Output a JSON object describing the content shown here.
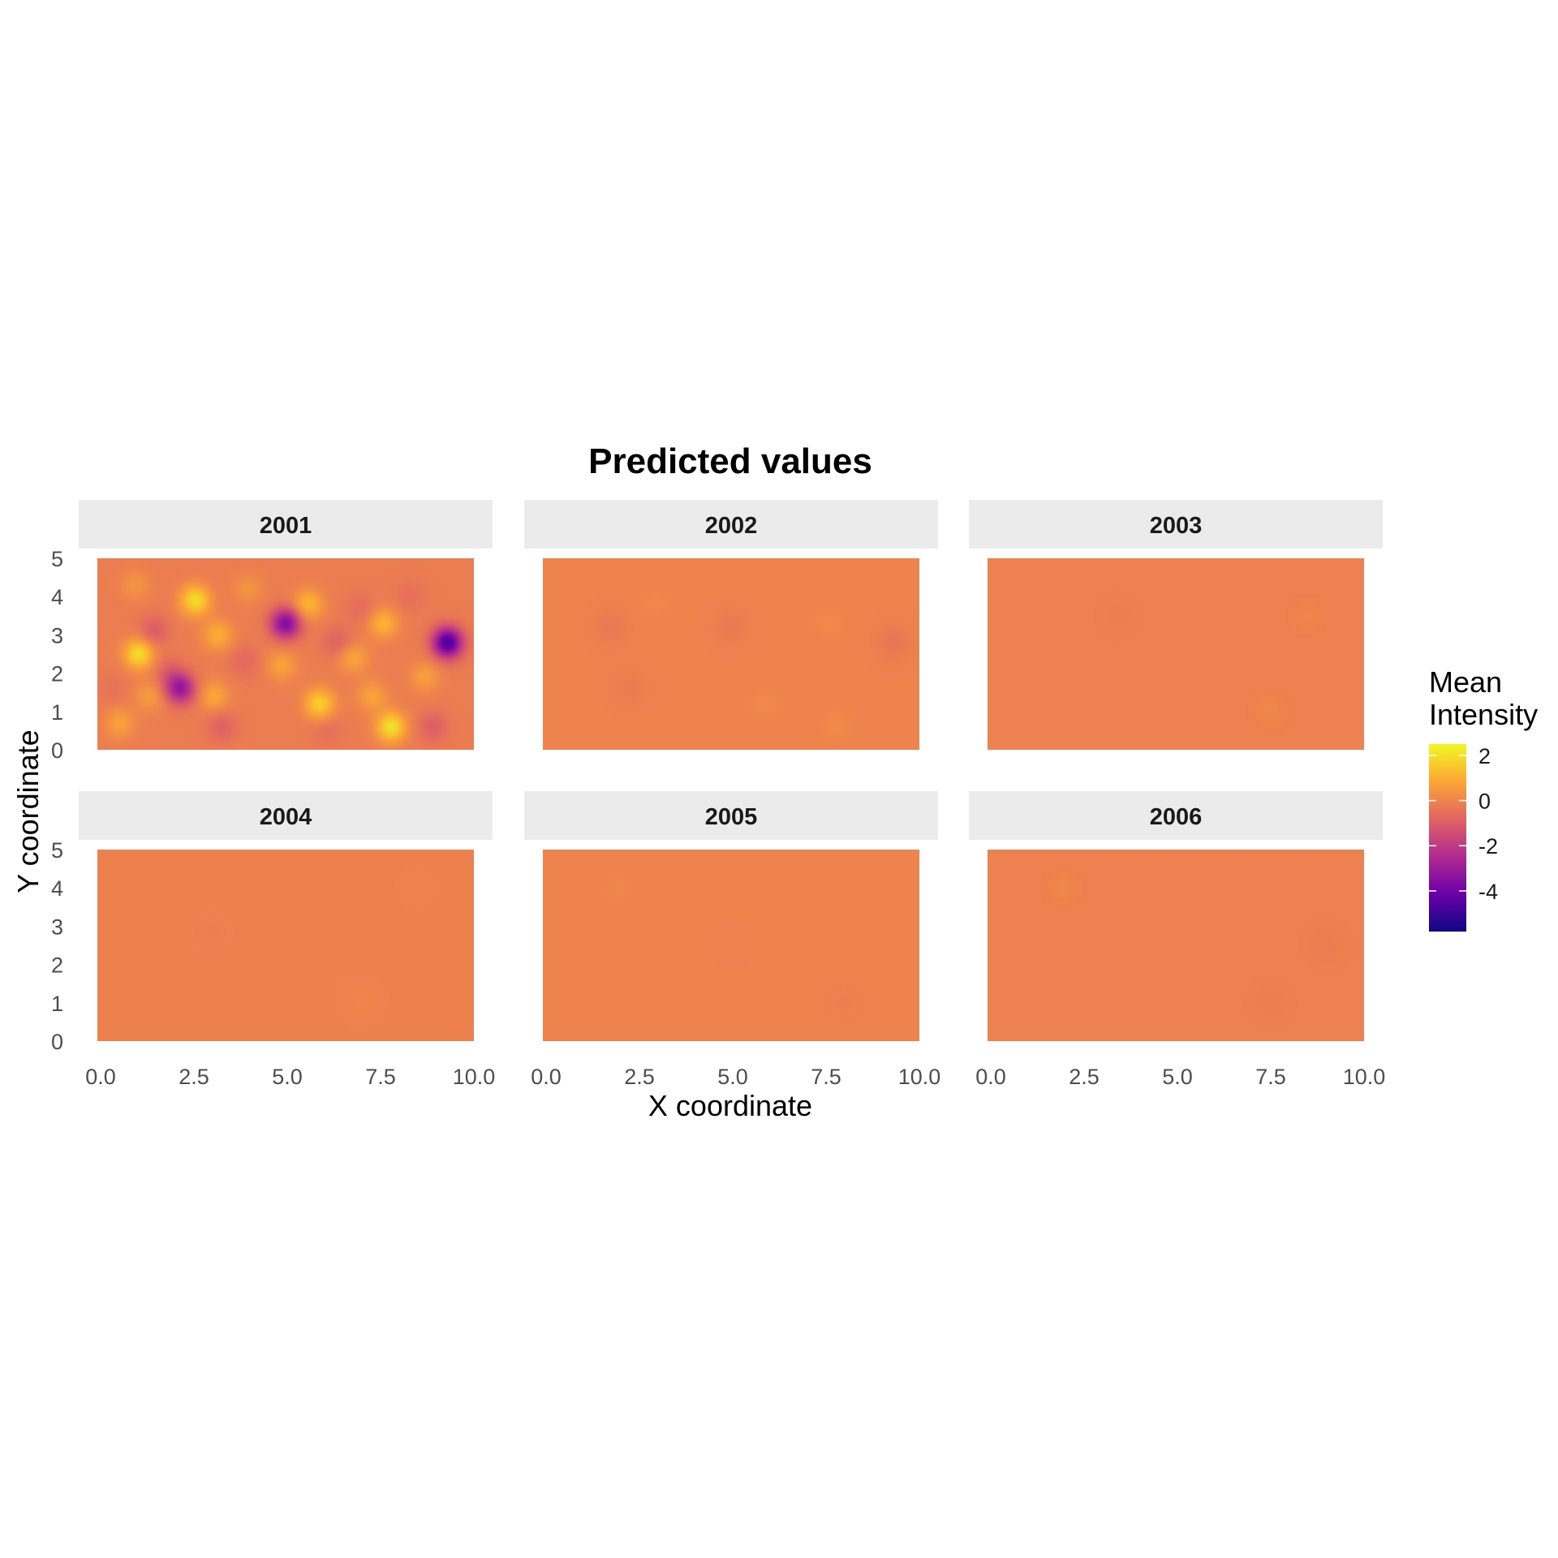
{
  "chart_data": {
    "type": "heatmap",
    "title": "Predicted values",
    "xlabel": "X coordinate",
    "ylabel": "Y coordinate",
    "xlim": [
      0,
      10
    ],
    "ylim": [
      0,
      5
    ],
    "x_ticks": [
      "0.0",
      "2.5",
      "5.0",
      "7.5",
      "10.0"
    ],
    "y_ticks": [
      "0",
      "1",
      "2",
      "3",
      "4",
      "5"
    ],
    "grid": false,
    "facets": [
      {
        "label": "2001",
        "base": -0.2,
        "hotspots": [
          {
            "x": 9.3,
            "y": 2.8,
            "value": -5.5
          },
          {
            "x": 5.0,
            "y": 3.3,
            "value": -4.2
          },
          {
            "x": 2.2,
            "y": 1.6,
            "value": -3.6
          },
          {
            "x": 2.6,
            "y": 3.9,
            "value": 2.3
          },
          {
            "x": 1.1,
            "y": 2.5,
            "value": 2.3
          },
          {
            "x": 7.8,
            "y": 0.6,
            "value": 2.4
          },
          {
            "x": 5.9,
            "y": 1.2,
            "value": 2.0
          },
          {
            "x": 5.6,
            "y": 3.8,
            "value": 1.4
          },
          {
            "x": 7.6,
            "y": 3.3,
            "value": 1.3
          },
          {
            "x": 3.2,
            "y": 3.0,
            "value": 1.2
          },
          {
            "x": 4.9,
            "y": 2.2,
            "value": 0.9
          },
          {
            "x": 6.8,
            "y": 2.4,
            "value": 1.0
          },
          {
            "x": 0.6,
            "y": 0.7,
            "value": 0.9
          },
          {
            "x": 3.1,
            "y": 1.4,
            "value": 1.0
          },
          {
            "x": 1.4,
            "y": 1.4,
            "value": 0.7
          },
          {
            "x": 8.7,
            "y": 1.9,
            "value": 0.8
          },
          {
            "x": 7.3,
            "y": 1.4,
            "value": 0.9
          },
          {
            "x": 1.0,
            "y": 4.3,
            "value": 0.5
          },
          {
            "x": 4.0,
            "y": 4.2,
            "value": 0.5
          },
          {
            "x": 1.5,
            "y": 3.1,
            "value": -1.2
          },
          {
            "x": 3.3,
            "y": 0.6,
            "value": -1.0
          },
          {
            "x": 8.9,
            "y": 0.6,
            "value": -1.1
          },
          {
            "x": 6.4,
            "y": 2.8,
            "value": -1.0
          },
          {
            "x": 1.9,
            "y": 2.0,
            "value": -1.0
          },
          {
            "x": 3.9,
            "y": 2.3,
            "value": -0.8
          },
          {
            "x": 7.0,
            "y": 3.7,
            "value": -0.7
          },
          {
            "x": 6.1,
            "y": 0.5,
            "value": -0.6
          },
          {
            "x": 0.4,
            "y": 1.6,
            "value": -0.5
          },
          {
            "x": 8.3,
            "y": 4.0,
            "value": -0.6
          }
        ]
      },
      {
        "label": "2002",
        "base": -0.05,
        "hotspots": [
          {
            "x": 9.3,
            "y": 2.8,
            "value": -0.45
          },
          {
            "x": 1.8,
            "y": 3.2,
            "value": -0.35
          },
          {
            "x": 5.0,
            "y": 3.2,
            "value": -0.3
          },
          {
            "x": 2.3,
            "y": 1.6,
            "value": -0.25
          },
          {
            "x": 7.8,
            "y": 0.6,
            "value": 0.2
          },
          {
            "x": 5.9,
            "y": 1.2,
            "value": 0.15
          },
          {
            "x": 7.6,
            "y": 3.3,
            "value": 0.15
          },
          {
            "x": 3.0,
            "y": 3.8,
            "value": 0.1
          }
        ]
      },
      {
        "label": "2003",
        "base": -0.1,
        "hotspots": [
          {
            "x": 3.5,
            "y": 3.5,
            "value": -0.15
          },
          {
            "x": 7.5,
            "y": 1.0,
            "value": 0.1
          },
          {
            "x": 8.5,
            "y": 3.5,
            "value": 0.05
          }
        ]
      },
      {
        "label": "2004",
        "base": -0.08,
        "hotspots": [
          {
            "x": 3.0,
            "y": 2.8,
            "value": -0.15
          },
          {
            "x": 7.0,
            "y": 1.0,
            "value": 0.05
          },
          {
            "x": 8.5,
            "y": 4.0,
            "value": -0.05
          }
        ]
      },
      {
        "label": "2005",
        "base": -0.05,
        "hotspots": [
          {
            "x": 8.0,
            "y": 1.0,
            "value": -0.15
          },
          {
            "x": 2.0,
            "y": 4.0,
            "value": 0.08
          },
          {
            "x": 5.0,
            "y": 2.5,
            "value": -0.08
          }
        ]
      },
      {
        "label": "2006",
        "base": -0.1,
        "hotspots": [
          {
            "x": 9.0,
            "y": 2.5,
            "value": -0.22
          },
          {
            "x": 7.5,
            "y": 1.0,
            "value": -0.18
          },
          {
            "x": 2.0,
            "y": 4.0,
            "value": 0.12
          },
          {
            "x": 5.0,
            "y": 1.5,
            "value": -0.1
          }
        ]
      }
    ],
    "legend": {
      "title_lines": [
        "Mean",
        "Intensity"
      ],
      "min": -5.8,
      "max": 2.5,
      "breaks": [
        2,
        0,
        -2,
        -4
      ],
      "break_labels": [
        "2",
        "0",
        "-2",
        "-4"
      ],
      "palette": "plasma",
      "colors": [
        "#0d0887",
        "#6a00a8",
        "#b12a90",
        "#e16462",
        "#fca636",
        "#f0f921"
      ],
      "placement": "right"
    }
  }
}
